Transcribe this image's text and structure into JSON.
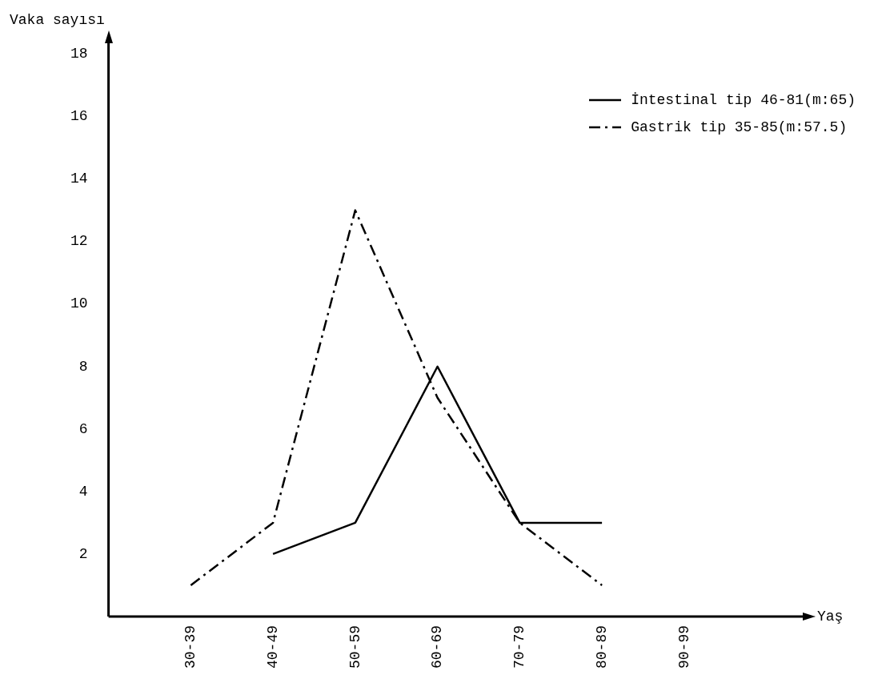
{
  "chart_data": {
    "type": "line",
    "ylabel": "Vaka sayısı",
    "annotations": [
      "Yaş"
    ],
    "categories": [
      "30-39",
      "40-49",
      "50-59",
      "60-69",
      "70-79",
      "80-89",
      "90-99"
    ],
    "series": [
      {
        "name": "İntestinal tip 46-81(m:65)",
        "color": "#000000",
        "line_style": "solid",
        "values": [
          null,
          2,
          3,
          8,
          3,
          3,
          null
        ]
      },
      {
        "name": "Gastrik tip 35-85(m:57.5)",
        "color": "#000000",
        "line_style": "dashed",
        "values": [
          1,
          3,
          13,
          7,
          3,
          1,
          null
        ]
      }
    ],
    "ylim": [
      0,
      18.5
    ],
    "yticks": [
      2,
      4,
      6,
      8,
      10,
      12,
      14,
      16,
      18
    ],
    "grid": false,
    "legend": "top right",
    "marker": "none"
  }
}
